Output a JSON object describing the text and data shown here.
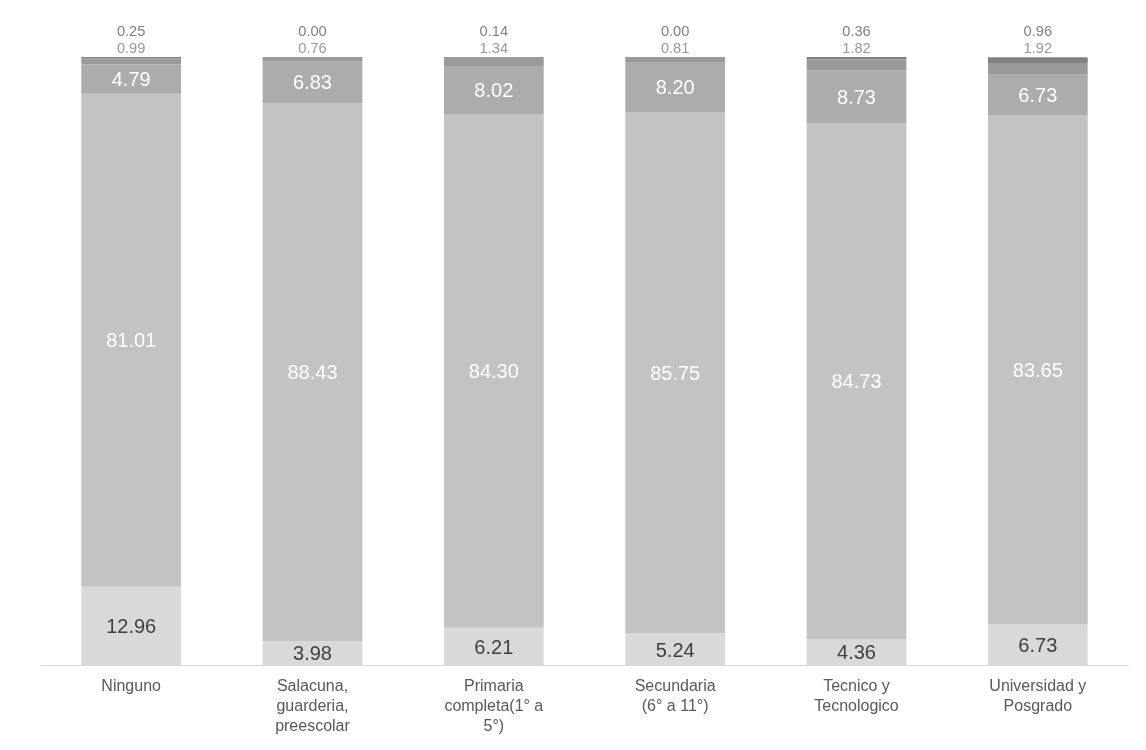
{
  "chart_data": {
    "type": "bar",
    "stacked": true,
    "tick_labels": "x",
    "categories": [
      "Ninguno",
      "Salacuna, guarderia, preescolar",
      "Primaria completa(1° a 5°)",
      "Secundaria (6° a 11°)",
      "Tecnico y Tecnologico",
      "Universidad y Posgrado"
    ],
    "series": [
      {
        "color": "#d9d9d9",
        "values": [
          12.96,
          3.98,
          6.21,
          5.24,
          4.36,
          6.73
        ],
        "value_labels": [
          "12.96",
          "3.98",
          "6.21",
          "5.24",
          "4.36",
          "6.73"
        ]
      },
      {
        "color": "#c3c3c3",
        "values": [
          81.01,
          88.43,
          84.3,
          85.75,
          84.73,
          83.65
        ],
        "value_labels": [
          "81.01",
          "88.43",
          "84.30",
          "85.75",
          "84.73",
          "83.65"
        ]
      },
      {
        "color": "#acacac",
        "values": [
          4.79,
          6.83,
          8.02,
          8.2,
          8.73,
          6.73
        ],
        "value_labels": [
          "4.79",
          "6.83",
          "8.02",
          "8.20",
          "8.73",
          "6.73"
        ]
      },
      {
        "color": "#9a9a9a",
        "values": [
          0.99,
          0.76,
          1.34,
          0.81,
          1.82,
          1.92
        ],
        "value_labels": [
          "0.99",
          "0.76",
          "1.34",
          "0.81",
          "1.82",
          "1.92"
        ]
      },
      {
        "color": "#808080",
        "values": [
          0.25,
          0.0,
          0.14,
          0.0,
          0.36,
          0.96
        ],
        "value_labels": [
          "0.25",
          "0.00",
          "0.14",
          "0.00",
          "0.36",
          "0.96"
        ]
      }
    ]
  }
}
